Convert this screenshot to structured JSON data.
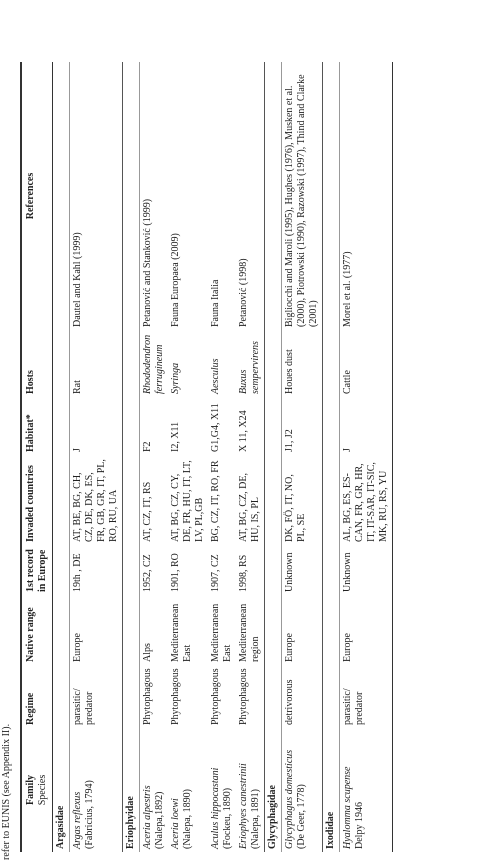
{
  "header": {
    "caption": "refer to EUNIS (see Appendix II)."
  },
  "table": {
    "columns": [
      [
        "Family",
        "Species"
      ],
      "Regime",
      "Native range",
      "1st record in Europe",
      "Invaded countries",
      "Habitat*",
      "Hosts",
      "References"
    ],
    "rows": [
      {
        "family": "Argasidae"
      },
      {
        "cells": [
          [
            "Argas reflexus",
            "(Fabricius, 1794)"
          ],
          "parasitic/ predator",
          "Europe",
          "19th , DE",
          "AT, BE, BG, CH, CZ, DE, DK, ES, FR, GB, GR, IT, PL, RO, RU, UA",
          "J",
          "Rat",
          "Dautel and Kahl (1999)"
        ]
      },
      {
        "family": "Eriophyidae"
      },
      {
        "cells": [
          [
            "Aceria alpestris",
            "(Nalepa,1892)"
          ],
          "Phytophagous",
          "Alps",
          "1952, CZ",
          "AT, CZ, IT, RS",
          "F2",
          "Rhododendron ferrugineum",
          "Petanović and Stanković (1999)"
        ]
      },
      {
        "cells": [
          [
            "Aceria loewi",
            "(Nalepa, 1890)"
          ],
          "Phytophagous",
          "Mediterranean East",
          "1901, RO",
          "AT, BG, CZ, CY, DE, FR, HU, IT, LT, LV, PL,GB",
          "I2, X11",
          "Syringa",
          "Fauna Europaea (2009)"
        ]
      },
      {
        "cells": [
          [
            "Aculus hippocastani",
            "(Fockeu, 1890)"
          ],
          "Phytophagous",
          "Mediterranean East",
          "1907, CZ",
          "BG, CZ, IT, RO, FR",
          "G1,G4, X11",
          "Aesculus",
          "Fauna Italia"
        ]
      },
      {
        "cells": [
          [
            "Eriophyes canestrinii",
            "(Nalepa, 1891)"
          ],
          "Phytophagous",
          "Mediterranean region",
          "1998, RS",
          "AT, BG, CZ, DE, HU, IS, PL",
          "X 11, X24",
          "Buxus sempervirens",
          "Petanović (1998)"
        ]
      },
      {
        "family": "Glycyphagidae"
      },
      {
        "cells": [
          [
            "Glycyphagus domesticus",
            "(De Geer, 1778)"
          ],
          "detrivorous",
          "Europe",
          "Unknown",
          "DK, FÖ, IT, NO, PL, SE",
          "J1, J2",
          "Houes dust",
          "Bigliocchi and Maroli (1995), Hughes (1976), Musken et al. (2000), Piotrowski (1990), Razowski (1997), Thind and Clarke (2001)"
        ]
      },
      {
        "family": "Ixodidae"
      },
      {
        "cells": [
          [
            "Hyalomma scupense",
            "Delpy 1946"
          ],
          "parasitic/ predator",
          "Europe",
          "Unknown",
          "AL, BG, ES, ES-CAN, FR, GR, HR, IT, IT-SAR, IT-SIC, MK, RU, RS, YU",
          "J",
          "Cattle",
          "Morel et al. (1977)"
        ]
      }
    ]
  }
}
